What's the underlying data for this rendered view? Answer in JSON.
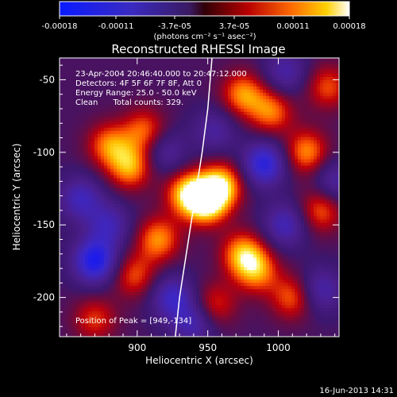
{
  "colorbar": {
    "tick_labels": [
      "-0.00018",
      "-0.00011",
      "-3.7e-05",
      "3.7e-05",
      "0.00011",
      "0.00018"
    ],
    "tick_values": [
      -0.00018,
      -0.00011,
      -3.7e-05,
      3.7e-05,
      0.00011,
      0.00018
    ],
    "range": [
      -0.00018,
      0.00018
    ],
    "units": "(photons cm⁻² s⁻¹ asec⁻²)",
    "colormap": "blue-purple-red-yellow-white"
  },
  "chart_data": {
    "type": "heatmap",
    "title": "Reconstructed RHESSI Image",
    "xlabel": "Heliocentric X (arcsec)",
    "ylabel": "Heliocentric Y (arcsec)",
    "xlim": [
      845,
      1043
    ],
    "ylim": [
      -227,
      -35
    ],
    "x_ticks": [
      900,
      950,
      1000
    ],
    "y_ticks": [
      -50,
      -100,
      -150,
      -200
    ],
    "x_tick_labels": [
      "900",
      "950",
      "1000"
    ],
    "y_tick_labels": [
      "-50",
      "-100",
      "-150",
      "-200"
    ],
    "annotations": {
      "time_range": "23-Apr-2004 20:46:40.000 to 20:47:12.000",
      "detectors": "Detectors: 4F 5F 6F 7F 8F, Att 0",
      "energy_range": "Energy Range: 25.0 - 50.0 keV",
      "clean_counts": "Clean      Total counts: 329.",
      "peak": "Position of Peak = [949,-134]"
    },
    "peak_position": [
      949,
      -134
    ],
    "limb_curve": {
      "x": [
        927,
        930,
        934,
        938,
        942,
        946,
        950,
        953
      ],
      "y": [
        -227,
        -200,
        -175,
        -150,
        -125,
        -100,
        -70,
        -35
      ]
    },
    "blobs": [
      {
        "x": 949,
        "y": -134,
        "v": 1.0
      },
      {
        "x": 960,
        "y": -122,
        "v": 0.75
      },
      {
        "x": 935,
        "y": -128,
        "v": 0.7
      },
      {
        "x": 895,
        "y": -110,
        "v": 0.7
      },
      {
        "x": 880,
        "y": -95,
        "v": 0.6
      },
      {
        "x": 905,
        "y": -85,
        "v": 0.55
      },
      {
        "x": 975,
        "y": -60,
        "v": 0.65
      },
      {
        "x": 995,
        "y": -72,
        "v": 0.6
      },
      {
        "x": 1020,
        "y": -100,
        "v": 0.65
      },
      {
        "x": 1030,
        "y": -140,
        "v": 0.55
      },
      {
        "x": 975,
        "y": -170,
        "v": 0.7
      },
      {
        "x": 985,
        "y": -182,
        "v": 0.6
      },
      {
        "x": 915,
        "y": -160,
        "v": 0.65
      },
      {
        "x": 898,
        "y": -185,
        "v": 0.5
      },
      {
        "x": 1010,
        "y": -200,
        "v": 0.55
      },
      {
        "x": 955,
        "y": -205,
        "v": 0.45
      },
      {
        "x": 1035,
        "y": -55,
        "v": 0.5
      },
      {
        "x": 870,
        "y": -215,
        "v": 0.45
      },
      {
        "x": 870,
        "y": -175,
        "v": -0.9
      },
      {
        "x": 990,
        "y": -108,
        "v": -0.8
      },
      {
        "x": 1005,
        "y": -150,
        "v": -0.55
      },
      {
        "x": 860,
        "y": -132,
        "v": -0.55
      },
      {
        "x": 880,
        "y": -150,
        "v": -0.5
      },
      {
        "x": 925,
        "y": -200,
        "v": -0.6
      },
      {
        "x": 940,
        "y": -218,
        "v": -0.5
      },
      {
        "x": 1030,
        "y": -195,
        "v": -0.5
      },
      {
        "x": 920,
        "y": -100,
        "v": -0.4
      },
      {
        "x": 955,
        "y": -85,
        "v": -0.4
      },
      {
        "x": 1005,
        "y": -45,
        "v": -0.45
      },
      {
        "x": 1040,
        "y": -120,
        "v": -0.45
      }
    ]
  },
  "footer": {
    "timestamp": "16-Jun-2013 14:31"
  }
}
